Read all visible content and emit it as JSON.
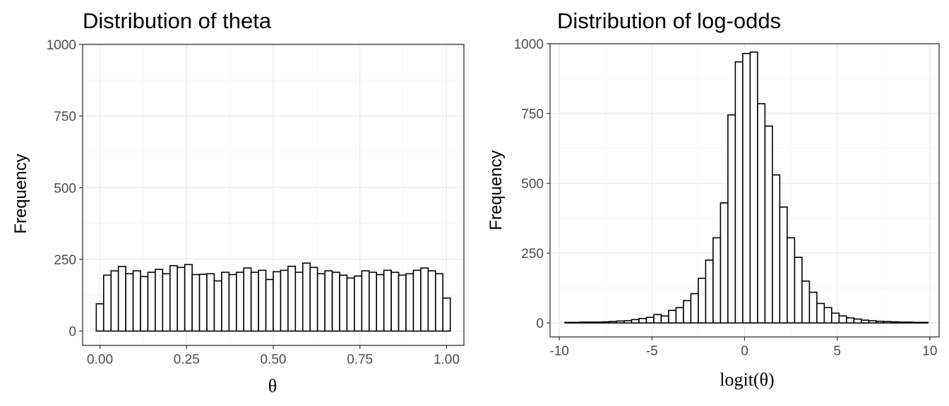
{
  "chart_data": [
    {
      "type": "bar",
      "title": "Distribution of theta",
      "xlabel": "θ",
      "ylabel": "Frequency",
      "xlim": [
        -0.05,
        1.05
      ],
      "ylim": [
        -50,
        1000
      ],
      "xticks": [
        0,
        0.25,
        0.5,
        0.75,
        1
      ],
      "xtick_labels": [
        "0.00",
        "0.25",
        "0.50",
        "0.75",
        "1.00"
      ],
      "yticks": [
        0,
        250,
        500,
        750,
        1000
      ],
      "ytick_labels": [
        "0",
        "250",
        "500",
        "750",
        "1000"
      ],
      "grid": true,
      "bin_width": 0.02128,
      "bin_centers": [
        0,
        0.0213,
        0.0426,
        0.0638,
        0.0851,
        0.1064,
        0.1277,
        0.1489,
        0.1702,
        0.1915,
        0.2128,
        0.234,
        0.2553,
        0.2766,
        0.2979,
        0.3191,
        0.3404,
        0.3617,
        0.383,
        0.4043,
        0.4255,
        0.4468,
        0.4681,
        0.4894,
        0.5106,
        0.5319,
        0.5532,
        0.5745,
        0.5957,
        0.617,
        0.6383,
        0.6596,
        0.6809,
        0.7021,
        0.7234,
        0.7447,
        0.766,
        0.7872,
        0.8085,
        0.8298,
        0.8511,
        0.8723,
        0.8936,
        0.9149,
        0.9362,
        0.9574,
        0.9787,
        1.0
      ],
      "values": [
        95,
        195,
        210,
        225,
        200,
        210,
        190,
        205,
        215,
        200,
        228,
        222,
        232,
        197,
        198,
        200,
        175,
        205,
        197,
        205,
        220,
        205,
        212,
        180,
        207,
        212,
        226,
        205,
        237,
        222,
        200,
        210,
        205,
        195,
        185,
        192,
        210,
        205,
        197,
        212,
        205,
        195,
        200,
        212,
        220,
        210,
        200,
        115
      ]
    },
    {
      "type": "bar",
      "title": "Distribution of log-odds",
      "xlabel": "logit(θ)",
      "ylabel": "Frequency",
      "xlim": [
        -10.5,
        10.5
      ],
      "ylim": [
        -50,
        1000
      ],
      "xticks": [
        -10,
        -5,
        0,
        5,
        10
      ],
      "xtick_labels": [
        "-10",
        "-5",
        "0",
        "5",
        "10"
      ],
      "yticks": [
        0,
        250,
        500,
        750,
        1000
      ],
      "ytick_labels": [
        "0",
        "250",
        "500",
        "750",
        "1000"
      ],
      "grid": true,
      "bin_width": 0.4,
      "bin_centers": [
        -9.5,
        -9.1,
        -8.7,
        -8.3,
        -7.9,
        -7.5,
        -7.1,
        -6.7,
        -6.3,
        -5.9,
        -5.5,
        -5.1,
        -4.7,
        -4.3,
        -3.9,
        -3.5,
        -3.1,
        -2.7,
        -2.3,
        -1.9,
        -1.5,
        -1.1,
        -0.7,
        -0.3,
        0.1,
        0.5,
        0.9,
        1.3,
        1.7,
        2.1,
        2.5,
        2.9,
        3.3,
        3.7,
        4.1,
        4.5,
        4.9,
        5.3,
        5.7,
        6.1,
        6.5,
        6.9,
        7.3,
        7.7,
        8.1,
        8.5,
        8.9,
        9.3,
        9.7
      ],
      "values": [
        2,
        2,
        3,
        3,
        3,
        4,
        5,
        7,
        8,
        12,
        16,
        20,
        30,
        25,
        45,
        55,
        80,
        105,
        160,
        225,
        305,
        430,
        745,
        935,
        965,
        970,
        785,
        705,
        530,
        415,
        305,
        235,
        150,
        110,
        70,
        55,
        35,
        25,
        18,
        14,
        10,
        8,
        6,
        5,
        4,
        3,
        3,
        2,
        2
      ]
    }
  ]
}
